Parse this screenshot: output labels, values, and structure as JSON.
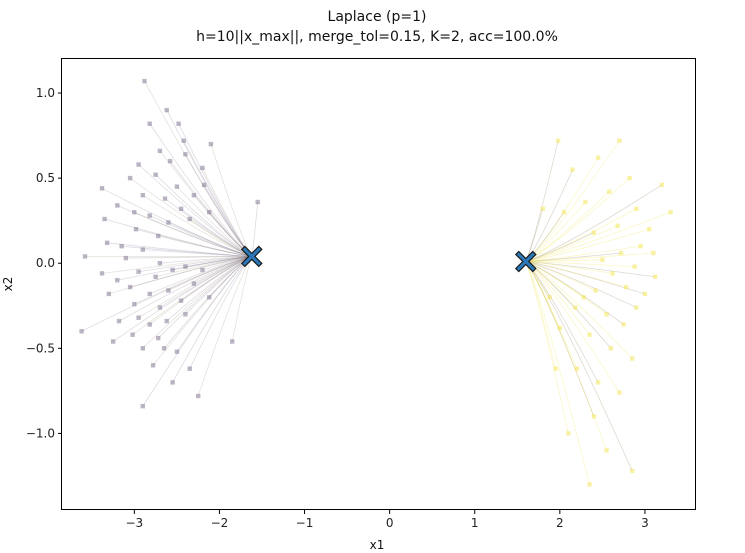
{
  "chart_data": {
    "type": "scatter",
    "title": "Laplace (p=1)",
    "subtitle": "h=10||x_max||, merge_tol=0.15, K=2, acc=100.0%",
    "xlabel": "x1",
    "ylabel": "x2",
    "xlim": [
      -3.85,
      3.6
    ],
    "ylim": [
      -1.45,
      1.2
    ],
    "xticks": [
      -3,
      -2,
      -1,
      0,
      1,
      2,
      3
    ],
    "xtick_labels": [
      "−3",
      "−2",
      "−1",
      "0",
      "1",
      "2",
      "3"
    ],
    "yticks": [
      -1.0,
      -0.5,
      0.0,
      0.5,
      1.0
    ],
    "ytick_labels": [
      "−1.0",
      "−0.5",
      "0.0",
      "0.5",
      "1.0"
    ],
    "grid": false,
    "legend": null,
    "colors": {
      "cluster_left": "#6a5a7c",
      "cluster_right": "#f2e23a",
      "centers": "#2a78b8",
      "center_edge": "#1a1a1a",
      "trajectory": "#8a7a55"
    },
    "centers": [
      {
        "x": -1.62,
        "y": 0.04
      },
      {
        "x": 1.6,
        "y": 0.01
      }
    ],
    "series": [
      {
        "cluster": "left",
        "points": [
          [
            -2.88,
            1.07
          ],
          [
            -2.62,
            0.9
          ],
          [
            -2.48,
            0.82
          ],
          [
            -2.1,
            0.7
          ],
          [
            -2.82,
            0.82
          ],
          [
            -2.42,
            0.72
          ],
          [
            -2.7,
            0.66
          ],
          [
            -2.4,
            0.64
          ],
          [
            -2.58,
            0.6
          ],
          [
            -2.2,
            0.56
          ],
          [
            -3.38,
            0.44
          ],
          [
            -2.95,
            0.58
          ],
          [
            -3.05,
            0.5
          ],
          [
            -2.75,
            0.52
          ],
          [
            -2.18,
            0.46
          ],
          [
            -2.5,
            0.45
          ],
          [
            -1.55,
            0.36
          ],
          [
            -3.2,
            0.34
          ],
          [
            -2.9,
            0.4
          ],
          [
            -2.64,
            0.38
          ],
          [
            -2.3,
            0.4
          ],
          [
            -3.0,
            0.3
          ],
          [
            -2.82,
            0.28
          ],
          [
            -2.45,
            0.32
          ],
          [
            -2.12,
            0.3
          ],
          [
            -3.35,
            0.26
          ],
          [
            -2.6,
            0.24
          ],
          [
            -2.35,
            0.26
          ],
          [
            -2.98,
            0.2
          ],
          [
            -3.32,
            0.12
          ],
          [
            -2.72,
            0.16
          ],
          [
            -3.15,
            0.1
          ],
          [
            -2.9,
            0.08
          ],
          [
            -3.58,
            0.04
          ],
          [
            -3.1,
            0.03
          ],
          [
            -2.7,
            0.0
          ],
          [
            -3.38,
            -0.06
          ],
          [
            -2.95,
            -0.05
          ],
          [
            -3.2,
            -0.1
          ],
          [
            -2.75,
            -0.08
          ],
          [
            -2.55,
            -0.04
          ],
          [
            -2.4,
            -0.02
          ],
          [
            -3.3,
            -0.18
          ],
          [
            -3.05,
            -0.14
          ],
          [
            -2.82,
            -0.18
          ],
          [
            -2.6,
            -0.16
          ],
          [
            -2.3,
            -0.12
          ],
          [
            -2.2,
            -0.04
          ],
          [
            -3.0,
            -0.24
          ],
          [
            -2.7,
            -0.26
          ],
          [
            -2.45,
            -0.22
          ],
          [
            -2.95,
            -0.32
          ],
          [
            -3.18,
            -0.34
          ],
          [
            -2.62,
            -0.34
          ],
          [
            -2.82,
            -0.36
          ],
          [
            -2.4,
            -0.3
          ],
          [
            -3.62,
            -0.4
          ],
          [
            -3.02,
            -0.42
          ],
          [
            -2.72,
            -0.44
          ],
          [
            -3.25,
            -0.46
          ],
          [
            -2.9,
            -0.5
          ],
          [
            -2.5,
            -0.52
          ],
          [
            -2.65,
            -0.5
          ],
          [
            -1.85,
            -0.46
          ],
          [
            -2.12,
            -0.2
          ],
          [
            -2.55,
            -0.7
          ],
          [
            -2.25,
            -0.78
          ],
          [
            -2.9,
            -0.84
          ],
          [
            -2.35,
            -0.62
          ],
          [
            -2.78,
            -0.6
          ]
        ]
      },
      {
        "cluster": "right",
        "points": [
          [
            1.98,
            0.72
          ],
          [
            2.7,
            0.72
          ],
          [
            2.45,
            0.62
          ],
          [
            2.15,
            0.55
          ],
          [
            2.82,
            0.5
          ],
          [
            2.58,
            0.42
          ],
          [
            3.2,
            0.46
          ],
          [
            2.3,
            0.36
          ],
          [
            2.9,
            0.32
          ],
          [
            2.05,
            0.3
          ],
          [
            2.68,
            0.22
          ],
          [
            3.05,
            0.2
          ],
          [
            2.4,
            0.18
          ],
          [
            2.95,
            0.1
          ],
          [
            3.1,
            0.06
          ],
          [
            2.72,
            0.06
          ],
          [
            2.5,
            0.02
          ],
          [
            2.88,
            -0.02
          ],
          [
            3.12,
            -0.08
          ],
          [
            2.62,
            -0.06
          ],
          [
            2.78,
            -0.14
          ],
          [
            3.0,
            -0.18
          ],
          [
            2.42,
            -0.16
          ],
          [
            2.28,
            -0.2
          ],
          [
            2.9,
            -0.26
          ],
          [
            2.55,
            -0.3
          ],
          [
            2.18,
            -0.26
          ],
          [
            2.75,
            -0.36
          ],
          [
            2.35,
            -0.42
          ],
          [
            2.0,
            -0.38
          ],
          [
            2.6,
            -0.5
          ],
          [
            2.85,
            -0.56
          ],
          [
            2.2,
            -0.62
          ],
          [
            2.45,
            -0.7
          ],
          [
            1.95,
            -0.62
          ],
          [
            2.7,
            -0.76
          ],
          [
            2.4,
            -0.9
          ],
          [
            2.1,
            -1.0
          ],
          [
            2.55,
            -1.1
          ],
          [
            2.85,
            -1.22
          ],
          [
            2.35,
            -1.3
          ],
          [
            3.3,
            0.3
          ],
          [
            1.8,
            0.32
          ],
          [
            1.88,
            -0.2
          ]
        ]
      }
    ]
  }
}
